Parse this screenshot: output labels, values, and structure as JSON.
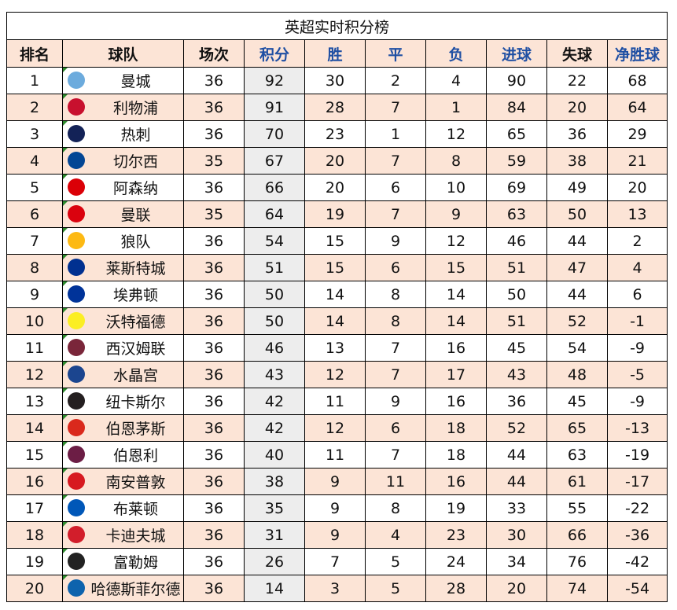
{
  "title": "英超实时积分榜",
  "headers": {
    "rank": "排名",
    "team": "球队",
    "played": "场次",
    "points": "积分",
    "won": "胜",
    "drawn": "平",
    "lost": "负",
    "gf": "进球",
    "ga": "失球",
    "gd": "净胜球"
  },
  "rows": [
    {
      "rank": "1",
      "team": "曼城",
      "played": "36",
      "points": "92",
      "won": "30",
      "drawn": "2",
      "lost": "4",
      "gf": "90",
      "ga": "22",
      "gd": "68",
      "logo_color": "#6cabdd"
    },
    {
      "rank": "2",
      "team": "利物浦",
      "played": "36",
      "points": "91",
      "won": "28",
      "drawn": "7",
      "lost": "1",
      "gf": "84",
      "ga": "20",
      "gd": "64",
      "logo_color": "#c8102e"
    },
    {
      "rank": "3",
      "team": "热刺",
      "played": "36",
      "points": "70",
      "won": "23",
      "drawn": "1",
      "lost": "12",
      "gf": "65",
      "ga": "36",
      "gd": "29",
      "logo_color": "#132257"
    },
    {
      "rank": "4",
      "team": "切尔西",
      "played": "35",
      "points": "67",
      "won": "20",
      "drawn": "7",
      "lost": "8",
      "gf": "59",
      "ga": "38",
      "gd": "21",
      "logo_color": "#034694"
    },
    {
      "rank": "5",
      "team": "阿森纳",
      "played": "36",
      "points": "66",
      "won": "20",
      "drawn": "6",
      "lost": "10",
      "gf": "69",
      "ga": "49",
      "gd": "20",
      "logo_color": "#db0007"
    },
    {
      "rank": "6",
      "team": "曼联",
      "played": "35",
      "points": "64",
      "won": "19",
      "drawn": "7",
      "lost": "9",
      "gf": "63",
      "ga": "50",
      "gd": "13",
      "logo_color": "#da020e"
    },
    {
      "rank": "7",
      "team": "狼队",
      "played": "36",
      "points": "54",
      "won": "15",
      "drawn": "9",
      "lost": "12",
      "gf": "46",
      "ga": "44",
      "gd": "2",
      "logo_color": "#fdb913"
    },
    {
      "rank": "8",
      "team": "莱斯特城",
      "played": "36",
      "points": "51",
      "won": "15",
      "drawn": "6",
      "lost": "15",
      "gf": "51",
      "ga": "47",
      "gd": "4",
      "logo_color": "#003090"
    },
    {
      "rank": "9",
      "team": "埃弗顿",
      "played": "36",
      "points": "50",
      "won": "14",
      "drawn": "8",
      "lost": "14",
      "gf": "50",
      "ga": "44",
      "gd": "6",
      "logo_color": "#003399"
    },
    {
      "rank": "10",
      "team": "沃特福德",
      "played": "36",
      "points": "50",
      "won": "14",
      "drawn": "8",
      "lost": "14",
      "gf": "51",
      "ga": "52",
      "gd": "-1",
      "logo_color": "#fbee23"
    },
    {
      "rank": "11",
      "team": "西汉姆联",
      "played": "36",
      "points": "46",
      "won": "13",
      "drawn": "7",
      "lost": "16",
      "gf": "45",
      "ga": "54",
      "gd": "-9",
      "logo_color": "#7a263a"
    },
    {
      "rank": "12",
      "team": "水晶宫",
      "played": "36",
      "points": "43",
      "won": "12",
      "drawn": "7",
      "lost": "17",
      "gf": "43",
      "ga": "48",
      "gd": "-5",
      "logo_color": "#1b458f"
    },
    {
      "rank": "13",
      "team": "纽卡斯尔",
      "played": "36",
      "points": "42",
      "won": "11",
      "drawn": "9",
      "lost": "16",
      "gf": "36",
      "ga": "45",
      "gd": "-9",
      "logo_color": "#241f20"
    },
    {
      "rank": "14",
      "team": "伯恩茅斯",
      "played": "36",
      "points": "42",
      "won": "12",
      "drawn": "6",
      "lost": "18",
      "gf": "52",
      "ga": "65",
      "gd": "-13",
      "logo_color": "#da291c"
    },
    {
      "rank": "15",
      "team": "伯恩利",
      "played": "36",
      "points": "40",
      "won": "11",
      "drawn": "7",
      "lost": "18",
      "gf": "44",
      "ga": "63",
      "gd": "-19",
      "logo_color": "#6c1d45"
    },
    {
      "rank": "16",
      "team": "南安普敦",
      "played": "36",
      "points": "38",
      "won": "9",
      "drawn": "11",
      "lost": "16",
      "gf": "44",
      "ga": "61",
      "gd": "-17",
      "logo_color": "#d71920"
    },
    {
      "rank": "17",
      "team": "布莱顿",
      "played": "36",
      "points": "35",
      "won": "9",
      "drawn": "8",
      "lost": "19",
      "gf": "33",
      "ga": "55",
      "gd": "-22",
      "logo_color": "#0057b8"
    },
    {
      "rank": "18",
      "team": "卡迪夫城",
      "played": "36",
      "points": "31",
      "won": "9",
      "drawn": "4",
      "lost": "23",
      "gf": "30",
      "ga": "66",
      "gd": "-36",
      "logo_color": "#d21e2b"
    },
    {
      "rank": "19",
      "team": "富勒姆",
      "played": "36",
      "points": "26",
      "won": "7",
      "drawn": "5",
      "lost": "24",
      "gf": "34",
      "ga": "76",
      "gd": "-42",
      "logo_color": "#222222"
    },
    {
      "rank": "20",
      "team": "哈德斯菲尔德",
      "played": "36",
      "points": "14",
      "won": "3",
      "drawn": "5",
      "lost": "28",
      "gf": "20",
      "ga": "74",
      "gd": "-54",
      "logo_color": "#0e63ad"
    }
  ],
  "colors": {
    "header_bg": "#fce4d6",
    "alt_row_bg": "#fce4d6",
    "points_col_bg": "#ededed",
    "header_accent_text": "#1f4fa3"
  }
}
